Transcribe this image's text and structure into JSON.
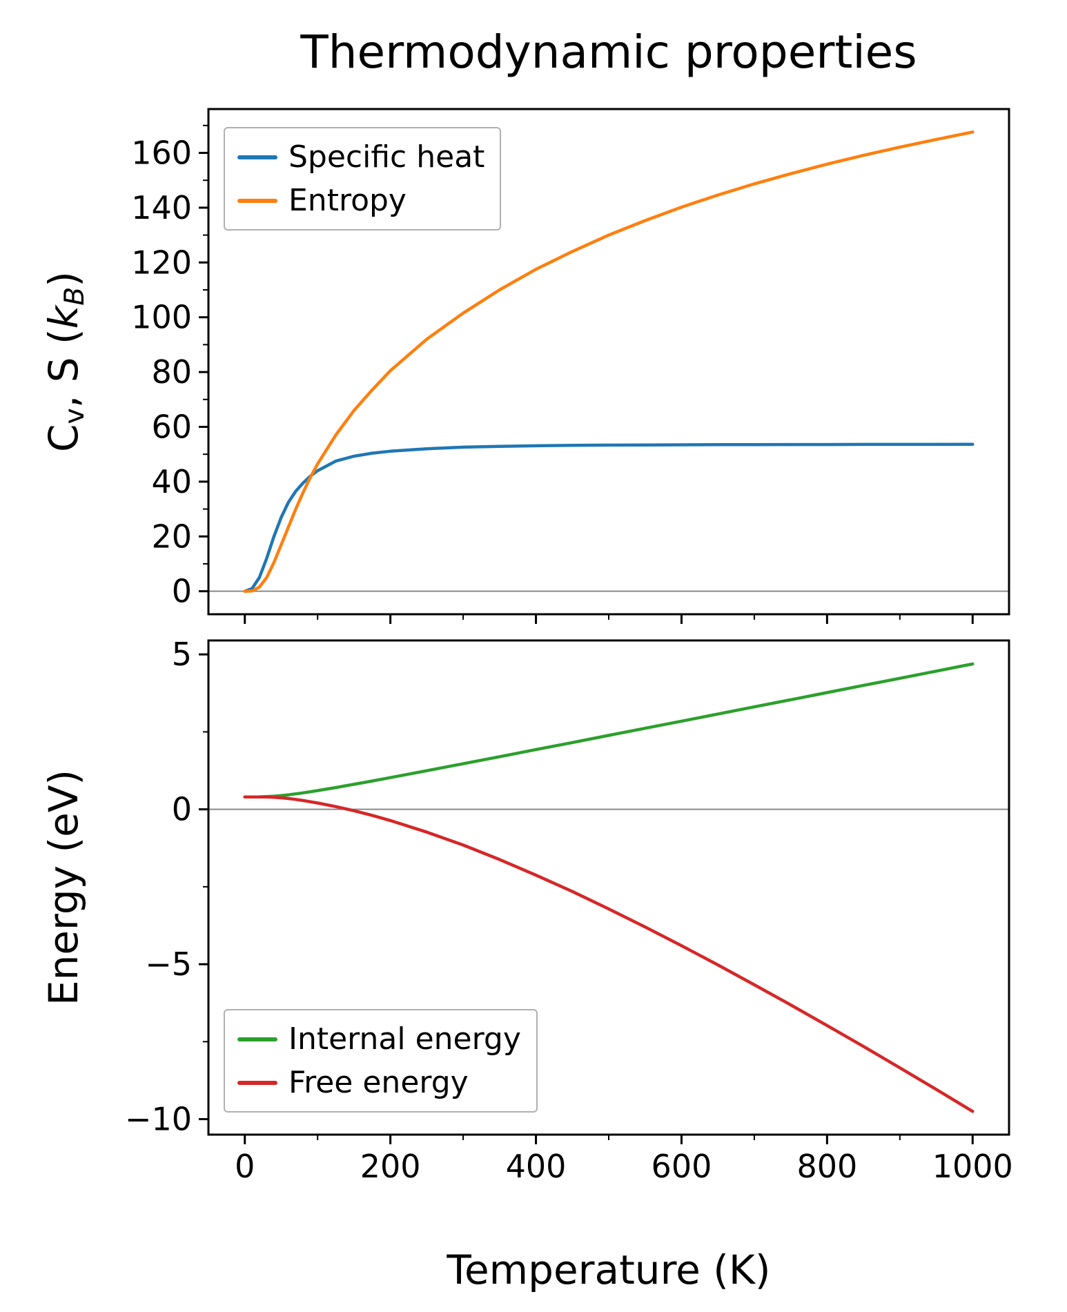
{
  "figure": {
    "title": "Thermodynamic properties",
    "background": "#ffffff",
    "text_color": "#000000",
    "spine_color": "#000000",
    "zero_line_color": "#8a8a8a"
  },
  "chart_data": [
    {
      "type": "line",
      "title": "Thermodynamic properties",
      "xlabel": "",
      "ylabel": "Cv, S (kB)",
      "ylabel_parts": {
        "c": "C",
        "v": "v",
        "mid": ", S (",
        "k": "k",
        "b": "B",
        "close": ")"
      },
      "xlim": [
        -50,
        1050
      ],
      "ylim": [
        -8.4,
        176.0
      ],
      "xticks": [
        0,
        200,
        400,
        600,
        800,
        1000
      ],
      "yticks": [
        0,
        20,
        40,
        60,
        80,
        100,
        120,
        140,
        160
      ],
      "x_minor_step": 100,
      "y_minor_step": 10,
      "show_x_tick_labels": false,
      "zero_line": true,
      "grid": false,
      "legend_position": "upper left",
      "x": [
        0,
        10,
        20,
        30,
        40,
        50,
        60,
        70,
        80,
        90,
        100,
        125,
        150,
        175,
        200,
        250,
        300,
        350,
        400,
        450,
        500,
        550,
        600,
        650,
        700,
        750,
        800,
        850,
        900,
        950,
        1000
      ],
      "series": [
        {
          "name": "Specific heat",
          "color": "#1f77b4",
          "values": [
            0,
            1,
            5,
            12,
            20,
            27,
            32.5,
            36.5,
            39.5,
            42,
            44,
            47.5,
            49.3,
            50.4,
            51.1,
            52,
            52.6,
            52.9,
            53.1,
            53.25,
            53.35,
            53.4,
            53.45,
            53.5,
            53.5,
            53.55,
            53.55,
            53.6,
            53.6,
            53.6,
            53.65
          ]
        },
        {
          "name": "Entropy",
          "color": "#ff7f0e",
          "values": [
            0,
            0.1,
            1.5,
            5,
            10.5,
            17,
            23.5,
            30,
            36,
            41.5,
            46.5,
            57,
            66,
            73.5,
            80.5,
            92,
            101.5,
            110,
            117.5,
            124,
            130,
            135.3,
            140.2,
            144.6,
            148.7,
            152.4,
            155.9,
            159.1,
            162.1,
            164.9,
            167.6
          ]
        }
      ]
    },
    {
      "type": "line",
      "title": "",
      "xlabel": "Temperature (K)",
      "ylabel": "Energy (eV)",
      "xlim": [
        -50,
        1050
      ],
      "ylim": [
        -10.5,
        5.45
      ],
      "xticks": [
        0,
        200,
        400,
        600,
        800,
        1000
      ],
      "yticks": [
        5,
        0,
        -5,
        -10
      ],
      "ytick_labels": [
        "5",
        "0",
        "−5",
        "−10"
      ],
      "x_minor_step": 100,
      "y_minor_step": 2.5,
      "show_x_tick_labels": true,
      "zero_line": true,
      "grid": false,
      "legend_position": "lower left",
      "x": [
        0,
        10,
        20,
        30,
        40,
        50,
        60,
        70,
        80,
        90,
        100,
        125,
        150,
        175,
        200,
        250,
        300,
        350,
        400,
        450,
        500,
        550,
        600,
        650,
        700,
        750,
        800,
        850,
        900,
        950,
        1000
      ],
      "series": [
        {
          "name": "Internal energy",
          "color": "#2ca02c",
          "values": [
            0.4,
            0.4,
            0.403,
            0.41,
            0.424,
            0.444,
            0.47,
            0.5,
            0.532,
            0.567,
            0.604,
            0.703,
            0.807,
            0.914,
            1.024,
            1.246,
            1.471,
            1.698,
            1.927,
            2.156,
            2.386,
            2.616,
            2.846,
            3.076,
            3.307,
            3.537,
            3.768,
            3.999,
            4.23,
            4.461,
            4.692
          ]
        },
        {
          "name": "Free energy",
          "color": "#d62728",
          "values": [
            0.4,
            0.4,
            0.4,
            0.397,
            0.388,
            0.371,
            0.348,
            0.319,
            0.284,
            0.245,
            0.203,
            0.089,
            -0.046,
            -0.194,
            -0.363,
            -0.736,
            -1.153,
            -1.62,
            -2.123,
            -2.652,
            -3.215,
            -3.796,
            -4.403,
            -5.023,
            -5.663,
            -6.312,
            -6.979,
            -7.654,
            -8.343,
            -9.039,
            -9.75
          ]
        }
      ]
    }
  ]
}
